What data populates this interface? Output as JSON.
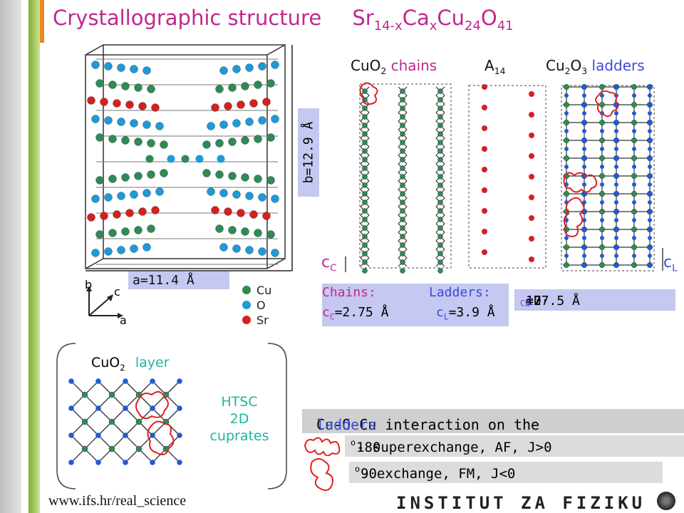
{
  "title": {
    "main": "Crystallographic structure",
    "formula_base": "Sr",
    "formula_sub1": "14-x",
    "formula_ca": "Ca",
    "formula_sub2": "x",
    "formula_cu": "Cu",
    "formula_sub3": "24",
    "formula_o": "O",
    "formula_sub4": "41"
  },
  "lattice": {
    "b_label": "b=12.9 Å",
    "a_label": "a=11.4 Å"
  },
  "axes": {
    "b": "b",
    "c": "c",
    "a": "a"
  },
  "legend": {
    "cu": "Cu",
    "o": "O",
    "sr": "Sr"
  },
  "columns": {
    "chains": {
      "formula": "CuO",
      "sub": "2",
      "word": " chains"
    },
    "a14": {
      "formula": "A",
      "sub": "14"
    },
    "ladders": {
      "formula_a": "Cu",
      "sub_a": "2",
      "formula_b": "O",
      "sub_b": "3",
      "word": " ladders"
    }
  },
  "constants": {
    "cc": "c",
    "cc_sub": "C",
    "cl": "c",
    "cl_sub": "L",
    "chains_label": "Chains:",
    "ladders_label": "Ladders:",
    "cc_value": "=2.75 Å",
    "cl_value": "=3.9 Å",
    "ratio_a": "10·",
    "ratio_b": "≈7·",
    "ratio_c": "≈27.5 Å"
  },
  "layer": {
    "formula": "CuO",
    "sub": "2",
    "word": "layer"
  },
  "htsc": {
    "line1": "HTSC",
    "line2": "2D",
    "line3": "cuprates"
  },
  "interaction": {
    "title_a": "Cu-O-Cu interaction on the ",
    "title_b": "ladders",
    "super_deg": "180",
    "super_text": " - superexchange, AF, J>0",
    "fm_deg": "90",
    "fm_text": " - exchange, FM, J<0",
    "deg_sup": "o"
  },
  "footer": {
    "url": "www.ifs.hr/real_science",
    "institute": "INSTITUT ZA FIZIKU"
  },
  "colors": {
    "cu": "#2e8b57",
    "o": "#1e5bd8",
    "sr": "#d62020",
    "accent": "#c0288e",
    "box": "#c5c8f0"
  }
}
